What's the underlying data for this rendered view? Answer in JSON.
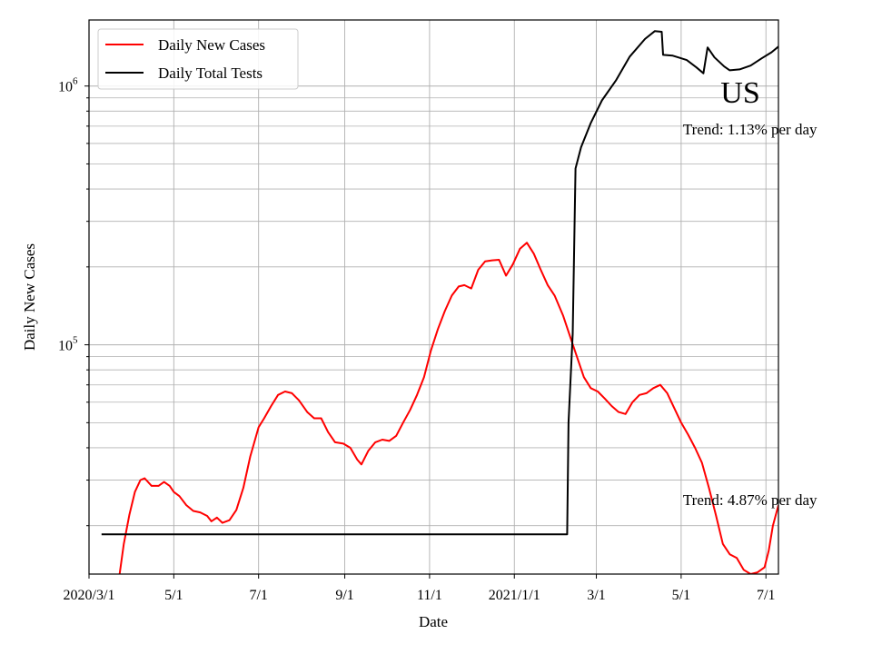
{
  "chart_data": {
    "type": "line",
    "title": "",
    "xlabel": "Date",
    "ylabel": "Daily New Cases",
    "yscale": "log",
    "ylim": [
      13000,
      1800000
    ],
    "xlim": [
      "2020-03-01",
      "2021-07-10"
    ],
    "grid": true,
    "grid_minor_y": true,
    "legend_position": "top-left",
    "x_ticks": [
      {
        "date": "2020-03-01",
        "label": "2020/3/1"
      },
      {
        "date": "2020-05-01",
        "label": "5/1"
      },
      {
        "date": "2020-07-01",
        "label": "7/1"
      },
      {
        "date": "2020-09-01",
        "label": "9/1"
      },
      {
        "date": "2020-11-01",
        "label": "11/1"
      },
      {
        "date": "2021-01-01",
        "label": "2021/1/1"
      },
      {
        "date": "2021-03-01",
        "label": "3/1"
      },
      {
        "date": "2021-05-01",
        "label": "5/1"
      },
      {
        "date": "2021-07-01",
        "label": "7/1"
      }
    ],
    "y_ticks": [
      {
        "value": 100000,
        "base": "10",
        "exp": "5"
      },
      {
        "value": 1000000,
        "base": "10",
        "exp": "6"
      }
    ],
    "big_label": "US",
    "annotations": [
      {
        "text": "Trend: 1.13% per day",
        "date": "2021-05-01",
        "value": 650000
      },
      {
        "text": "Trend: 4.87% per day",
        "date": "2021-05-01",
        "value": 24000
      }
    ],
    "series": [
      {
        "name": "Daily New Cases",
        "color": "#ff0000",
        "points": [
          [
            "2020-03-23",
            13000
          ],
          [
            "2020-03-26",
            17000
          ],
          [
            "2020-03-30",
            22000
          ],
          [
            "2020-04-03",
            27000
          ],
          [
            "2020-04-07",
            30000
          ],
          [
            "2020-04-10",
            30500
          ],
          [
            "2020-04-15",
            28500
          ],
          [
            "2020-04-20",
            28500
          ],
          [
            "2020-04-24",
            29500
          ],
          [
            "2020-04-28",
            28500
          ],
          [
            "2020-05-01",
            27000
          ],
          [
            "2020-05-05",
            26000
          ],
          [
            "2020-05-10",
            24000
          ],
          [
            "2020-05-15",
            22800
          ],
          [
            "2020-05-20",
            22500
          ],
          [
            "2020-05-25",
            21800
          ],
          [
            "2020-05-28",
            20800
          ],
          [
            "2020-06-01",
            21500
          ],
          [
            "2020-06-05",
            20500
          ],
          [
            "2020-06-10",
            21000
          ],
          [
            "2020-06-15",
            23000
          ],
          [
            "2020-06-20",
            28000
          ],
          [
            "2020-06-25",
            37000
          ],
          [
            "2020-07-01",
            48000
          ],
          [
            "2020-07-05",
            52000
          ],
          [
            "2020-07-10",
            58000
          ],
          [
            "2020-07-15",
            64000
          ],
          [
            "2020-07-20",
            66000
          ],
          [
            "2020-07-25",
            65000
          ],
          [
            "2020-07-30",
            61000
          ],
          [
            "2020-08-05",
            55000
          ],
          [
            "2020-08-10",
            52000
          ],
          [
            "2020-08-15",
            52000
          ],
          [
            "2020-08-20",
            46000
          ],
          [
            "2020-08-25",
            42000
          ],
          [
            "2020-08-31",
            41500
          ],
          [
            "2020-09-05",
            40000
          ],
          [
            "2020-09-10",
            36000
          ],
          [
            "2020-09-13",
            34500
          ],
          [
            "2020-09-18",
            39000
          ],
          [
            "2020-09-23",
            42000
          ],
          [
            "2020-09-28",
            43000
          ],
          [
            "2020-10-03",
            42500
          ],
          [
            "2020-10-08",
            44500
          ],
          [
            "2020-10-13",
            50000
          ],
          [
            "2020-10-18",
            56000
          ],
          [
            "2020-10-23",
            64000
          ],
          [
            "2020-10-28",
            75000
          ],
          [
            "2020-11-02",
            95000
          ],
          [
            "2020-11-07",
            115000
          ],
          [
            "2020-11-12",
            135000
          ],
          [
            "2020-11-17",
            155000
          ],
          [
            "2020-11-22",
            168000
          ],
          [
            "2020-11-26",
            170000
          ],
          [
            "2020-12-01",
            165000
          ],
          [
            "2020-12-06",
            195000
          ],
          [
            "2020-12-11",
            210000
          ],
          [
            "2020-12-16",
            212000
          ],
          [
            "2020-12-21",
            213000
          ],
          [
            "2020-12-26",
            185000
          ],
          [
            "2020-12-31",
            205000
          ],
          [
            "2021-01-05",
            235000
          ],
          [
            "2021-01-10",
            248000
          ],
          [
            "2021-01-15",
            225000
          ],
          [
            "2021-01-20",
            195000
          ],
          [
            "2021-01-25",
            170000
          ],
          [
            "2021-01-30",
            155000
          ],
          [
            "2021-02-05",
            130000
          ],
          [
            "2021-02-10",
            108000
          ],
          [
            "2021-02-15",
            90000
          ],
          [
            "2021-02-20",
            75000
          ],
          [
            "2021-02-25",
            68000
          ],
          [
            "2021-03-02",
            66000
          ],
          [
            "2021-03-07",
            62000
          ],
          [
            "2021-03-12",
            58000
          ],
          [
            "2021-03-17",
            55000
          ],
          [
            "2021-03-22",
            54000
          ],
          [
            "2021-03-27",
            60000
          ],
          [
            "2021-04-01",
            64000
          ],
          [
            "2021-04-06",
            65000
          ],
          [
            "2021-04-11",
            68000
          ],
          [
            "2021-04-16",
            70000
          ],
          [
            "2021-04-21",
            65000
          ],
          [
            "2021-04-26",
            57000
          ],
          [
            "2021-05-01",
            50000
          ],
          [
            "2021-05-06",
            45000
          ],
          [
            "2021-05-11",
            40000
          ],
          [
            "2021-05-16",
            35000
          ],
          [
            "2021-05-21",
            28000
          ],
          [
            "2021-05-26",
            22000
          ],
          [
            "2021-05-31",
            17000
          ],
          [
            "2021-06-05",
            15500
          ],
          [
            "2021-06-10",
            15000
          ],
          [
            "2021-06-15",
            13500
          ],
          [
            "2021-06-20",
            13000
          ],
          [
            "2021-06-25",
            13200
          ],
          [
            "2021-06-30",
            13800
          ],
          [
            "2021-07-03",
            16000
          ],
          [
            "2021-07-06",
            20000
          ],
          [
            "2021-07-10",
            24000
          ]
        ]
      },
      {
        "name": "Daily Total Tests",
        "color": "#000000",
        "points": [
          [
            "2020-03-10",
            18500
          ],
          [
            "2021-02-08",
            18500
          ],
          [
            "2021-02-09",
            50000
          ],
          [
            "2021-02-12",
            110000
          ],
          [
            "2021-02-14",
            480000
          ],
          [
            "2021-02-18",
            580000
          ],
          [
            "2021-02-25",
            720000
          ],
          [
            "2021-03-05",
            880000
          ],
          [
            "2021-03-15",
            1050000
          ],
          [
            "2021-03-25",
            1300000
          ],
          [
            "2021-04-05",
            1520000
          ],
          [
            "2021-04-12",
            1630000
          ],
          [
            "2021-04-17",
            1620000
          ],
          [
            "2021-04-18",
            1320000
          ],
          [
            "2021-04-25",
            1310000
          ],
          [
            "2021-05-05",
            1260000
          ],
          [
            "2021-05-12",
            1180000
          ],
          [
            "2021-05-17",
            1120000
          ],
          [
            "2021-05-20",
            1410000
          ],
          [
            "2021-05-25",
            1290000
          ],
          [
            "2021-06-01",
            1190000
          ],
          [
            "2021-06-05",
            1150000
          ],
          [
            "2021-06-12",
            1160000
          ],
          [
            "2021-06-20",
            1200000
          ],
          [
            "2021-06-28",
            1280000
          ],
          [
            "2021-07-05",
            1350000
          ],
          [
            "2021-07-10",
            1420000
          ]
        ]
      }
    ]
  }
}
